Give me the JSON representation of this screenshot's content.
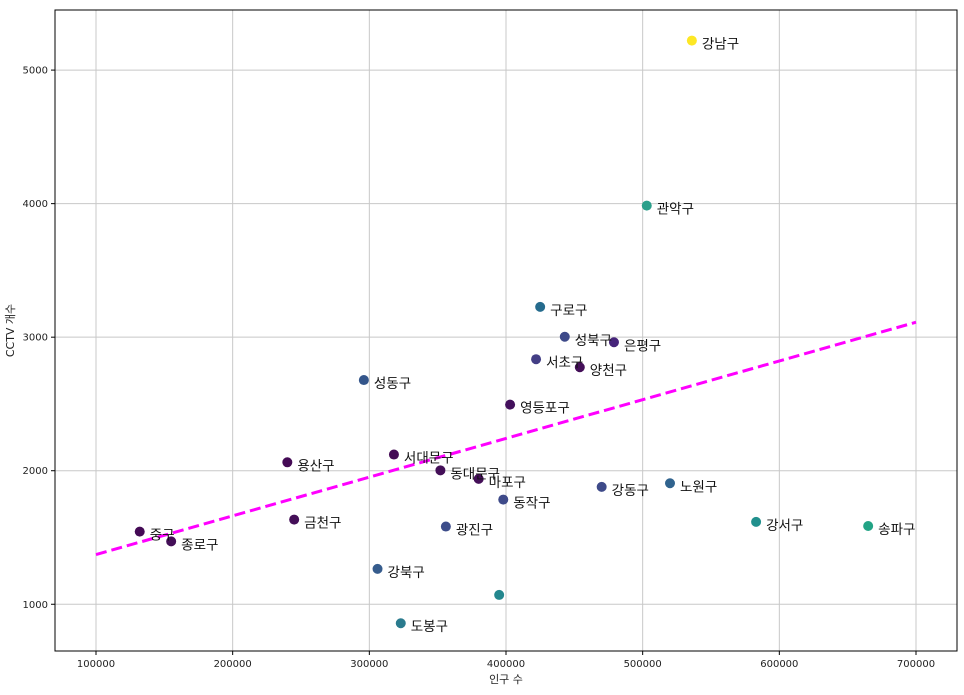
{
  "chart_data": {
    "type": "scatter",
    "xlabel": "인구 수",
    "ylabel": "CCTV 개수",
    "xlim": [
      70000,
      730000
    ],
    "ylim": [
      650,
      5450
    ],
    "xticks": [
      100000,
      200000,
      300000,
      400000,
      500000,
      600000,
      700000
    ],
    "yticks": [
      1000,
      2000,
      3000,
      4000,
      5000
    ],
    "grid": true,
    "points": [
      {
        "label": "강남구",
        "x": 536000,
        "y": 5221,
        "color": "#fde725"
      },
      {
        "label": "관악구",
        "x": 503000,
        "y": 3985,
        "color": "#2a9f8a"
      },
      {
        "label": "구로구",
        "x": 425000,
        "y": 3227,
        "color": "#256b8d"
      },
      {
        "label": "성북구",
        "x": 443000,
        "y": 3003,
        "color": "#3e4a89"
      },
      {
        "label": "은평구",
        "x": 479000,
        "y": 2962,
        "color": "#46247a"
      },
      {
        "label": "서초구",
        "x": 422000,
        "y": 2835,
        "color": "#433e85"
      },
      {
        "label": "양천구",
        "x": 454000,
        "y": 2775,
        "color": "#440f58"
      },
      {
        "label": "성동구",
        "x": 296000,
        "y": 2679,
        "color": "#34568b"
      },
      {
        "label": "영등포구",
        "x": 403000,
        "y": 2495,
        "color": "#43105c"
      },
      {
        "label": "서대문구",
        "x": 318000,
        "y": 2121,
        "color": "#440a55"
      },
      {
        "label": "용산구",
        "x": 240000,
        "y": 2063,
        "color": "#440a55"
      },
      {
        "label": "동대문구",
        "x": 352000,
        "y": 2003,
        "color": "#440f58"
      },
      {
        "label": "마포구",
        "x": 380000,
        "y": 1939,
        "color": "#440f58"
      },
      {
        "label": "노원구",
        "x": 520000,
        "y": 1906,
        "color": "#30638e"
      },
      {
        "label": "강동구",
        "x": 470000,
        "y": 1879,
        "color": "#3e4a89"
      },
      {
        "label": "동작구",
        "x": 398000,
        "y": 1784,
        "color": "#3e4a89"
      },
      {
        "label": "금천구",
        "x": 245000,
        "y": 1634,
        "color": "#440f58"
      },
      {
        "label": "강서구",
        "x": 583000,
        "y": 1617,
        "color": "#21908d"
      },
      {
        "label": "송파구",
        "x": 665000,
        "y": 1586,
        "color": "#22a385"
      },
      {
        "label": "광진구",
        "x": 356000,
        "y": 1582,
        "color": "#3d4d8a"
      },
      {
        "label": "중구",
        "x": 132000,
        "y": 1544,
        "color": "#440a55"
      },
      {
        "label": "종로구",
        "x": 155000,
        "y": 1471,
        "color": "#440f58"
      },
      {
        "label": "강북구",
        "x": 306000,
        "y": 1265,
        "color": "#365c8d"
      },
      {
        "label": "",
        "x": 395000,
        "y": 1070,
        "color": "#23878e"
      },
      {
        "label": "도봉구",
        "x": 323000,
        "y": 858,
        "color": "#2a7b8e"
      }
    ],
    "trendline": {
      "x": [
        100000,
        700000
      ],
      "y": [
        1372,
        3112
      ],
      "color": "#ff00ff",
      "style": "dashed"
    }
  }
}
